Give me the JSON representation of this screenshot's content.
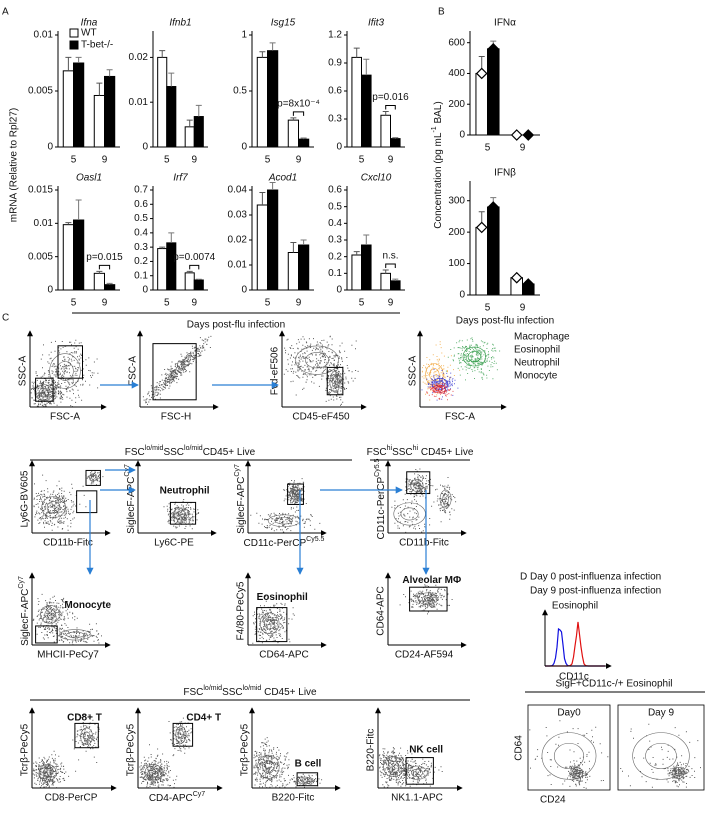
{
  "panel_letters": [
    "A",
    "B",
    "C",
    "D"
  ],
  "a_ylabel": "mRNA (Relative to Rpl27)",
  "a_xlabel": "Days post-flu infection",
  "b_ylabel": [
    "Concentration (pg mL",
    "-1",
    " BAL)"
  ],
  "b_xlabel": "Days post-flu infection",
  "chart_data": [
    {
      "type": "bar",
      "title": "Ifna",
      "categories": [
        "5",
        "9"
      ],
      "ylim": [
        0,
        0.01
      ],
      "yticks": [
        0,
        0.005,
        0.01
      ],
      "legend": "upper right",
      "series": [
        {
          "name": "WT",
          "color": "#ffffff",
          "values": [
            0.0068,
            0.0046
          ],
          "errors": [
            0.0012,
            0.0011
          ]
        },
        {
          "name": "T-bet-/-",
          "color": "#000000",
          "values": [
            0.0075,
            0.0063
          ],
          "errors": [
            0.0005,
            0.0006
          ]
        }
      ]
    },
    {
      "type": "bar",
      "title": "Ifnb1",
      "categories": [
        "5",
        "9"
      ],
      "ylim": [
        0,
        0.025
      ],
      "yticks": [
        0,
        0.01,
        0.02
      ],
      "series": [
        {
          "color": "#ffffff",
          "values": [
            0.02,
            0.0045
          ],
          "errors": [
            0.0015,
            0.0015
          ]
        },
        {
          "color": "#000000",
          "values": [
            0.0135,
            0.0068
          ],
          "errors": [
            0.003,
            0.0025
          ]
        }
      ]
    },
    {
      "type": "bar",
      "title": "Isg15",
      "categories": [
        "5",
        "9"
      ],
      "ylim": [
        0,
        1
      ],
      "yticks": [
        0,
        0.5,
        1
      ],
      "annotation": "p=8x10⁻⁴",
      "series": [
        {
          "color": "#ffffff",
          "values": [
            0.8,
            0.24
          ],
          "errors": [
            0.05,
            0.02
          ]
        },
        {
          "color": "#000000",
          "values": [
            0.86,
            0.07
          ],
          "errors": [
            0.07,
            0.01
          ]
        }
      ]
    },
    {
      "type": "bar",
      "title": "Ifit3",
      "categories": [
        "5",
        "9"
      ],
      "ylim": [
        0,
        1.2
      ],
      "yticks": [
        0,
        0.3,
        0.6,
        0.9,
        1.2
      ],
      "annotation": "p=0.016",
      "series": [
        {
          "color": "#ffffff",
          "values": [
            0.96,
            0.34
          ],
          "errors": [
            0.1,
            0.04
          ]
        },
        {
          "color": "#000000",
          "values": [
            0.77,
            0.09
          ],
          "errors": [
            0.17,
            0.01
          ]
        }
      ]
    },
    {
      "type": "bar",
      "title": "Oasl1",
      "categories": [
        "5",
        "9"
      ],
      "ylim": [
        0,
        0.015
      ],
      "yticks": [
        0,
        0.005,
        0.01,
        0.015
      ],
      "annotation": "p=0.015",
      "series": [
        {
          "color": "#ffffff",
          "values": [
            0.0098,
            0.0025
          ],
          "errors": [
            0.0003,
            0.0003
          ]
        },
        {
          "color": "#000000",
          "values": [
            0.0105,
            0.0008
          ],
          "errors": [
            0.003,
            0.0002
          ]
        }
      ]
    },
    {
      "type": "bar",
      "title": "Irf7",
      "categories": [
        "5",
        "9"
      ],
      "ylim": [
        0,
        0.7
      ],
      "yticks": [
        0,
        0.1,
        0.2,
        0.3,
        0.4,
        0.5,
        0.6,
        0.7
      ],
      "annotation": "p=0.0074",
      "series": [
        {
          "color": "#ffffff",
          "values": [
            0.29,
            0.12
          ],
          "errors": [
            0.01,
            0.01
          ]
        },
        {
          "color": "#000000",
          "values": [
            0.33,
            0.07
          ],
          "errors": [
            0.07,
            0.005
          ]
        }
      ]
    },
    {
      "type": "bar",
      "title": "Acod1",
      "categories": [
        "5",
        "9"
      ],
      "ylim": [
        0,
        0.04
      ],
      "yticks": [
        0,
        0.01,
        0.02,
        0.03,
        0.04
      ],
      "series": [
        {
          "color": "#ffffff",
          "values": [
            0.034,
            0.015
          ],
          "errors": [
            0.005,
            0.004
          ]
        },
        {
          "color": "#000000",
          "values": [
            0.04,
            0.018
          ],
          "errors": [
            0.003,
            0.002
          ]
        }
      ]
    },
    {
      "type": "bar",
      "title": "Cxcl10",
      "categories": [
        "5",
        "9"
      ],
      "ylim": [
        0,
        0.6
      ],
      "yticks": [
        0,
        0.1,
        0.2,
        0.3,
        0.4,
        0.5,
        0.6
      ],
      "annotation": "n.s.",
      "series": [
        {
          "color": "#ffffff",
          "values": [
            0.21,
            0.1
          ],
          "errors": [
            0.02,
            0.02
          ]
        },
        {
          "color": "#000000",
          "values": [
            0.27,
            0.055
          ],
          "errors": [
            0.06,
            0.01
          ]
        }
      ]
    },
    {
      "type": "bar",
      "title": "IFNα",
      "categories": [
        "5",
        "9"
      ],
      "ylim": [
        0,
        650
      ],
      "yticks": [
        0,
        200,
        400,
        600
      ],
      "series": [
        {
          "color": "#ffffff",
          "marker": "diamond",
          "values": [
            400,
            0
          ],
          "errors": [
            110,
            0
          ]
        },
        {
          "color": "#000000",
          "marker": "diamond",
          "values": [
            560,
            0
          ],
          "errors": [
            50,
            0
          ]
        }
      ]
    },
    {
      "type": "bar",
      "title": "IFNβ",
      "categories": [
        "5",
        "9"
      ],
      "ylim": [
        0,
        350
      ],
      "yticks": [
        0,
        100,
        200,
        300
      ],
      "series": [
        {
          "color": "#ffffff",
          "marker": "diamond",
          "values": [
            215,
            55
          ],
          "errors": [
            50,
            5
          ]
        },
        {
          "color": "#000000",
          "marker": "diamond",
          "values": [
            280,
            35
          ],
          "errors": [
            30,
            8
          ]
        }
      ]
    }
  ],
  "flow": {
    "plots": [
      {
        "ylabel": "SSC-A",
        "xlabel": "FSC-A"
      },
      {
        "ylabel": "FSC-A",
        "xlabel": "FSC-H"
      },
      {
        "ylabel": "Fvd-eF506",
        "xlabel": "CD45-eF450"
      },
      {
        "ylabel": "SSC-A",
        "xlabel": "FSC-A"
      },
      {
        "ylabel": "Ly6G-BV605",
        "xlabel": "CD11b-Fitc"
      },
      {
        "ylabel": [
          "SiglecF-APC",
          "Cy7"
        ],
        "xlabel": "Ly6C-PE",
        "gate": "Neutrophil"
      },
      {
        "ylabel": [
          "SiglecF-APC",
          "Cy7"
        ],
        "xlabel": [
          "CD11c-PerCP",
          "Cy5.5"
        ]
      },
      {
        "ylabel": [
          "CD11c-PerCP",
          "Cy5.5"
        ],
        "xlabel": "CD11b-Fitc"
      },
      {
        "ylabel": [
          "SiglecF-APC",
          "Cy7"
        ],
        "xlabel": "MHCII-PeCy7",
        "gate": "Monocyte"
      },
      {
        "ylabel": "F4/80-PeCy5",
        "xlabel": "CD64-APC",
        "gate": "Eosinophil"
      },
      {
        "ylabel": "CD64-APC",
        "xlabel": "CD24-AF594",
        "gate": "Alveolar MΦ"
      },
      {
        "ylabel": "Tcrβ-PeCy5",
        "xlabel": "CD8-PerCP",
        "gate": "CD8+ T"
      },
      {
        "ylabel": "Tcrβ-PeCy5",
        "xlabel": [
          "CD4-APC",
          "Cy7"
        ],
        "gate": "CD4+ T"
      },
      {
        "ylabel": "Tcrβ-PeCy5",
        "xlabel": "B220-Fitc",
        "gate": "B cell"
      },
      {
        "ylabel": "B220-Fitc",
        "xlabel": "NK1.1-APC",
        "gate": "NK cell"
      }
    ],
    "population_legend": [
      {
        "name": "Macrophage",
        "color": "#2e9a45"
      },
      {
        "name": "Eosinophil",
        "color": "#f0a030"
      },
      {
        "name": "Neutrophil",
        "color": "#2a2ad0"
      },
      {
        "name": "Monocyte",
        "color": "#e02020"
      }
    ],
    "headers": [
      [
        "FSC",
        "lo/mid",
        "SSC",
        "lo/mid",
        "CD45+ Live"
      ],
      [
        "FSC",
        "hi",
        "SSC",
        "hi",
        " CD45+ Live"
      ],
      [
        "FSC",
        "lo/mid",
        "SSC",
        "lo/mid",
        " CD45+ Live"
      ]
    ]
  },
  "panel_d": {
    "legend": [
      {
        "name": "Day 0 post-influenza infection",
        "color": "#1010e0"
      },
      {
        "name": "Day 9 post-influenza infection",
        "color": "#e01010"
      }
    ],
    "histogram_title": "Eosinophil",
    "histogram_xlabel": "CD11c",
    "header": "SigF+CD11c-/+ Eosinophil",
    "plots": [
      {
        "title": "Day0"
      },
      {
        "title": "Day 9"
      }
    ],
    "ylabel": "CD64",
    "xlabel": "CD24"
  }
}
